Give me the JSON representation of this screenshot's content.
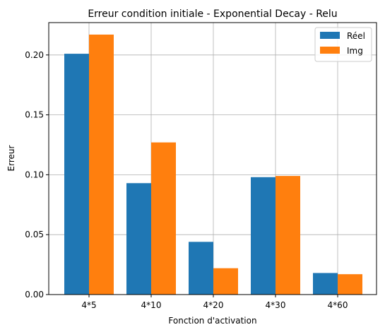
{
  "chart_data": {
    "type": "bar",
    "title": "Erreur condition initiale - Exponential Decay - Relu",
    "xlabel": "Fonction d'activation",
    "ylabel": "Erreur",
    "categories": [
      "4*5",
      "4*10",
      "4*20",
      "4*30",
      "4*60"
    ],
    "series": [
      {
        "name": "Réel",
        "color": "#1f77b4",
        "values": [
          0.201,
          0.093,
          0.044,
          0.098,
          0.018
        ]
      },
      {
        "name": "Img",
        "color": "#ff7f0e",
        "values": [
          0.217,
          0.127,
          0.022,
          0.099,
          0.017
        ]
      }
    ],
    "ylim": [
      0,
      0.227
    ],
    "yticks": [
      "0.00",
      "0.05",
      "0.10",
      "0.15",
      "0.20"
    ],
    "grid": true,
    "legend_position": "top-right"
  }
}
